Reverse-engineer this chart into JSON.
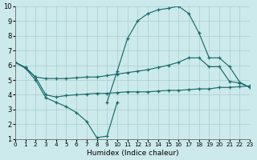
{
  "xlabel": "Humidex (Indice chaleur)",
  "xlim": [
    0,
    23
  ],
  "ylim": [
    1,
    10
  ],
  "xticks": [
    0,
    1,
    2,
    3,
    4,
    5,
    6,
    7,
    8,
    9,
    10,
    11,
    12,
    13,
    14,
    15,
    16,
    17,
    18,
    19,
    20,
    21,
    22,
    23
  ],
  "yticks": [
    1,
    2,
    3,
    4,
    5,
    6,
    7,
    8,
    9,
    10
  ],
  "background_color": "#cceaeb",
  "grid_color": "#aacccc",
  "line_color": "#1a6b6b",
  "curve_peak_x": [
    9,
    10,
    11,
    12,
    13,
    14,
    15,
    16,
    17,
    18,
    19,
    20,
    21,
    22,
    23
  ],
  "curve_peak_y": [
    3.5,
    5.6,
    7.8,
    9.0,
    9.5,
    9.75,
    9.85,
    10.0,
    9.5,
    8.2,
    6.5,
    6.5,
    5.9,
    4.85,
    4.5
  ],
  "curve_mid_x": [
    0,
    1,
    2,
    3,
    4,
    5,
    6,
    7,
    8,
    9,
    10,
    11,
    12,
    13,
    14,
    15,
    16,
    17,
    18,
    19,
    20,
    21,
    22,
    23
  ],
  "curve_mid_y": [
    6.2,
    5.85,
    5.2,
    5.1,
    5.1,
    5.1,
    5.15,
    5.2,
    5.2,
    5.3,
    5.4,
    5.5,
    5.6,
    5.7,
    5.85,
    6.0,
    6.2,
    6.5,
    6.5,
    5.9,
    5.9,
    4.9,
    4.8,
    4.5
  ],
  "curve_flat_x": [
    0,
    1,
    2,
    3,
    4,
    5,
    6,
    7,
    8,
    9,
    10,
    11,
    12,
    13,
    14,
    15,
    16,
    17,
    18,
    19,
    20,
    21,
    22,
    23
  ],
  "curve_flat_y": [
    6.2,
    5.85,
    5.2,
    4.0,
    3.85,
    3.95,
    4.0,
    4.05,
    4.1,
    4.1,
    4.15,
    4.2,
    4.2,
    4.2,
    4.25,
    4.3,
    4.3,
    4.35,
    4.4,
    4.4,
    4.5,
    4.5,
    4.55,
    4.6
  ],
  "curve_dip_x": [
    0,
    1,
    2,
    3,
    4,
    5,
    6,
    7,
    8,
    9,
    10
  ],
  "curve_dip_y": [
    6.2,
    5.8,
    5.0,
    3.8,
    3.5,
    3.2,
    2.8,
    2.2,
    1.1,
    1.2,
    3.5
  ]
}
